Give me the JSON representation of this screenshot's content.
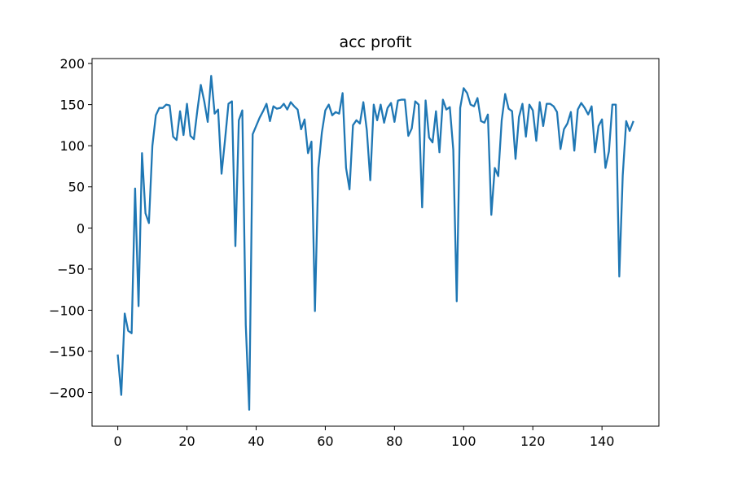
{
  "chart_data": {
    "type": "line",
    "title": "acc profit",
    "xlabel": "",
    "ylabel": "",
    "xlim": [
      -7.45,
      156.45
    ],
    "ylim": [
      -241,
      206
    ],
    "x_ticks": [
      0,
      20,
      40,
      60,
      80,
      100,
      120,
      140
    ],
    "x_tick_labels": [
      "0",
      "20",
      "40",
      "60",
      "80",
      "100",
      "120",
      "140"
    ],
    "y_ticks": [
      200,
      150,
      100,
      50,
      0,
      -50,
      -100,
      -150,
      -200
    ],
    "y_tick_labels": [
      "200",
      "150",
      "100",
      "50",
      "0",
      "−50",
      "−100",
      "−150",
      "−200"
    ],
    "grid": false,
    "line_color": "#1f77b4",
    "series": [
      {
        "x_start": 0,
        "x_step": 1,
        "values": [
          -155,
          -203,
          -104,
          -125,
          -128,
          48,
          -95,
          91,
          18,
          6,
          100,
          137,
          146,
          146,
          150,
          149,
          111,
          107,
          142,
          113,
          151,
          112,
          108,
          143,
          174,
          154,
          129,
          185,
          139,
          144,
          66,
          107,
          151,
          154,
          -22,
          131,
          143,
          -118,
          -221,
          114,
          124,
          134,
          142,
          151,
          130,
          148,
          145,
          146,
          151,
          144,
          153,
          148,
          144,
          120,
          132,
          91,
          105,
          -101,
          73,
          116,
          143,
          150,
          137,
          141,
          139,
          164,
          73,
          47,
          125,
          131,
          127,
          153,
          119,
          58,
          150,
          131,
          150,
          128,
          146,
          152,
          129,
          155,
          156,
          156,
          112,
          121,
          154,
          150,
          25,
          155,
          110,
          104,
          142,
          92,
          156,
          144,
          147,
          95,
          -89,
          146,
          170,
          164,
          150,
          148,
          158,
          130,
          128,
          138,
          16,
          73,
          63,
          131,
          163,
          145,
          142,
          84,
          135,
          151,
          111,
          150,
          143,
          106,
          153,
          124,
          151,
          151,
          148,
          141,
          96,
          120,
          127,
          141,
          94,
          144,
          152,
          146,
          138,
          148,
          92,
          124,
          132,
          73,
          93,
          150,
          150,
          -59,
          64,
          130,
          118,
          129
        ]
      }
    ]
  }
}
